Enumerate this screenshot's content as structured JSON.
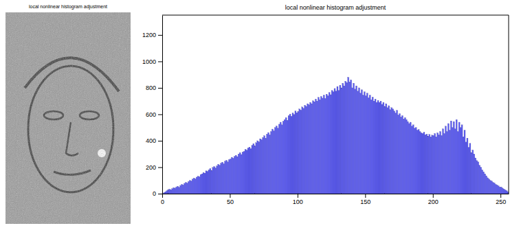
{
  "image_panel": {
    "title": "local nonlinear histogram adjustment"
  },
  "chart_data": {
    "type": "histogram",
    "title": "local nonlinear histogram adjustment",
    "bins": [
      0,
      1,
      2,
      3,
      4,
      5,
      6,
      7,
      8,
      9,
      10,
      11,
      12,
      13,
      14,
      15,
      16,
      17,
      18,
      19,
      20,
      21,
      22,
      23,
      24,
      25,
      26,
      27,
      28,
      29,
      30,
      31,
      32,
      33,
      34,
      35,
      36,
      37,
      38,
      39,
      40,
      41,
      42,
      43,
      44,
      45,
      46,
      47,
      48,
      49,
      50,
      51,
      52,
      53,
      54,
      55,
      56,
      57,
      58,
      59,
      60,
      61,
      62,
      63,
      64,
      65,
      66,
      67,
      68,
      69,
      70,
      71,
      72,
      73,
      74,
      75,
      76,
      77,
      78,
      79,
      80,
      81,
      82,
      83,
      84,
      85,
      86,
      87,
      88,
      89,
      90,
      91,
      92,
      93,
      94,
      95,
      96,
      97,
      98,
      99,
      100,
      101,
      102,
      103,
      104,
      105,
      106,
      107,
      108,
      109,
      110,
      111,
      112,
      113,
      114,
      115,
      116,
      117,
      118,
      119,
      120,
      121,
      122,
      123,
      124,
      125,
      126,
      127,
      128,
      129,
      130,
      131,
      132,
      133,
      134,
      135,
      136,
      137,
      138,
      139,
      140,
      141,
      142,
      143,
      144,
      145,
      146,
      147,
      148,
      149,
      150,
      151,
      152,
      153,
      154,
      155,
      156,
      157,
      158,
      159,
      160,
      161,
      162,
      163,
      164,
      165,
      166,
      167,
      168,
      169,
      170,
      171,
      172,
      173,
      174,
      175,
      176,
      177,
      178,
      179,
      180,
      181,
      182,
      183,
      184,
      185,
      186,
      187,
      188,
      189,
      190,
      191,
      192,
      193,
      194,
      195,
      196,
      197,
      198,
      199,
      200,
      201,
      202,
      203,
      204,
      205,
      206,
      207,
      208,
      209,
      210,
      211,
      212,
      213,
      214,
      215,
      216,
      217,
      218,
      219,
      220,
      221,
      222,
      223,
      224,
      225,
      226,
      227,
      228,
      229,
      230,
      231,
      232,
      233,
      234,
      235,
      236,
      237,
      238,
      239,
      240,
      241,
      242,
      243,
      244,
      245,
      246,
      247,
      248,
      249,
      250,
      251,
      252,
      253,
      254,
      255,
      256
    ],
    "values": [
      2,
      8,
      15,
      22,
      28,
      34,
      30,
      38,
      45,
      42,
      50,
      56,
      48,
      62,
      70,
      66,
      78,
      85,
      80,
      92,
      100,
      96,
      110,
      118,
      112,
      125,
      132,
      128,
      145,
      150,
      160,
      155,
      172,
      168,
      180,
      190,
      176,
      198,
      205,
      195,
      210,
      222,
      215,
      230,
      238,
      226,
      245,
      252,
      240,
      258,
      262,
      275,
      268,
      282,
      290,
      280,
      300,
      310,
      296,
      315,
      320,
      335,
      328,
      345,
      352,
      340,
      365,
      378,
      360,
      385,
      400,
      392,
      415,
      408,
      425,
      438,
      420,
      450,
      462,
      445,
      470,
      488,
      475,
      500,
      512,
      495,
      525,
      540,
      520,
      548,
      560,
      575,
      555,
      590,
      602,
      585,
      610,
      598,
      625,
      612,
      620,
      640,
      632,
      655,
      645,
      668,
      660,
      680,
      672,
      690,
      680,
      702,
      695,
      715,
      700,
      728,
      710,
      735,
      722,
      745,
      720,
      752,
      740,
      765,
      748,
      780,
      770,
      795,
      775,
      810,
      780,
      820,
      800,
      835,
      815,
      850,
      840,
      880,
      845,
      860,
      800,
      835,
      790,
      815,
      775,
      800,
      760,
      785,
      745,
      770,
      740,
      760,
      725,
      745,
      710,
      730,
      700,
      715,
      690,
      705,
      690,
      700,
      675,
      690,
      660,
      680,
      650,
      665,
      635,
      650,
      640,
      625,
      610,
      630,
      595,
      605,
      580,
      590,
      565,
      575,
      560,
      545,
      530,
      540,
      510,
      520,
      495,
      500,
      480,
      485,
      470,
      460,
      455,
      465,
      445,
      450,
      435,
      448,
      430,
      442,
      440,
      455,
      430,
      460,
      445,
      470,
      440,
      490,
      455,
      510,
      470,
      530,
      480,
      550,
      500,
      545,
      490,
      560,
      470,
      540,
      500,
      520,
      430,
      480,
      390,
      420,
      350,
      380,
      310,
      330,
      300,
      270,
      250,
      240,
      215,
      200,
      180,
      165,
      150,
      135,
      120,
      110,
      100,
      95,
      85,
      80,
      70,
      65,
      58,
      50,
      50,
      42,
      35,
      28,
      22,
      15
    ],
    "color": "#5c5cf2",
    "xlim": [
      0,
      256
    ],
    "ylim": [
      0,
      1350
    ],
    "xticks": [
      0,
      50,
      100,
      150,
      200,
      250
    ],
    "yticks": [
      0,
      200,
      400,
      600,
      800,
      1000,
      1200
    ],
    "grid": false
  }
}
